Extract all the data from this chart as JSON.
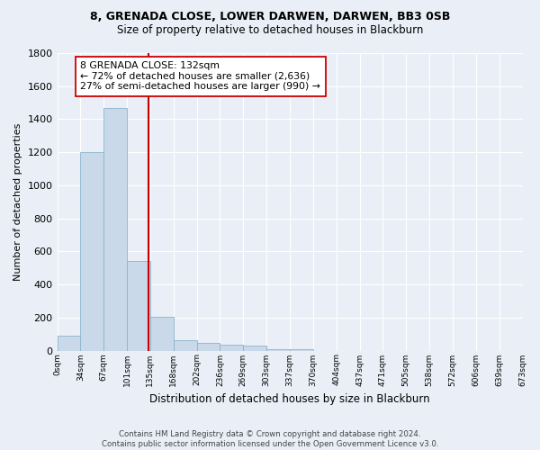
{
  "title_line1": "8, GRENADA CLOSE, LOWER DARWEN, DARWEN, BB3 0SB",
  "title_line2": "Size of property relative to detached houses in Blackburn",
  "xlabel": "Distribution of detached houses by size in Blackburn",
  "ylabel": "Number of detached properties",
  "bar_values": [
    90,
    1200,
    1470,
    540,
    205,
    65,
    45,
    35,
    28,
    10,
    8,
    0,
    0,
    0,
    0,
    0,
    0,
    0,
    0,
    0
  ],
  "bin_labels": [
    "0sqm",
    "34sqm",
    "67sqm",
    "101sqm",
    "135sqm",
    "168sqm",
    "202sqm",
    "236sqm",
    "269sqm",
    "303sqm",
    "337sqm",
    "370sqm",
    "404sqm",
    "437sqm",
    "471sqm",
    "505sqm",
    "538sqm",
    "572sqm",
    "606sqm",
    "639sqm",
    "673sqm"
  ],
  "bar_color": "#c9d9ea",
  "bar_edge_color": "#8ab4cc",
  "bin_width": 33.5,
  "property_line_x": 132,
  "annotation_text": "8 GRENADA CLOSE: 132sqm\n← 72% of detached houses are smaller (2,636)\n27% of semi-detached houses are larger (990) →",
  "annotation_box_color": "#ffffff",
  "annotation_box_edge_color": "#cc0000",
  "red_line_color": "#cc0000",
  "ylim": [
    0,
    1800
  ],
  "ytick_interval": 200,
  "background_color": "#eaeff7",
  "grid_color": "#ffffff",
  "footer_line1": "Contains HM Land Registry data © Crown copyright and database right 2024.",
  "footer_line2": "Contains public sector information licensed under the Open Government Licence v3.0."
}
